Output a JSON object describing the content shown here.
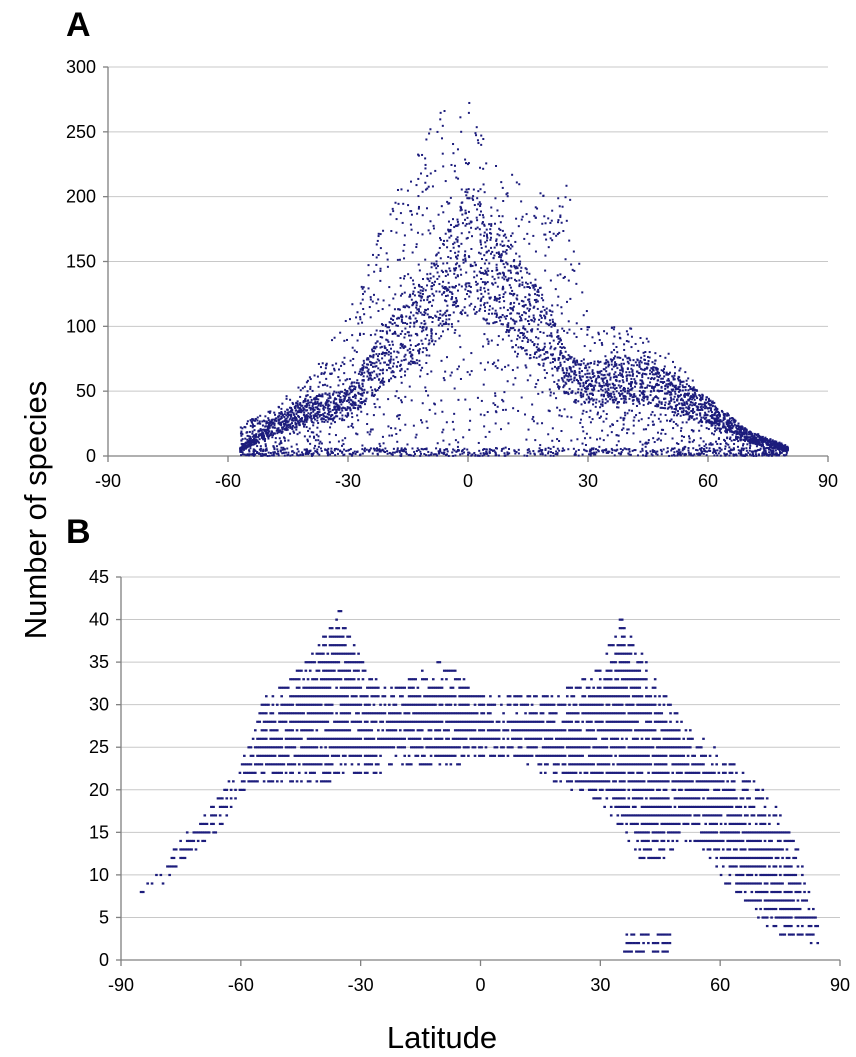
{
  "figure": {
    "ylabel": "Number of species",
    "xlabel": "Latitude"
  },
  "chart_data": [
    {
      "type": "scatter",
      "panel": "A",
      "xlim": [
        -90,
        90
      ],
      "ylim": [
        0,
        300
      ],
      "x_ticks": [
        "-90",
        "-60",
        "-30",
        "0",
        "30",
        "60",
        "90"
      ],
      "y_ticks": [
        "0",
        "50",
        "100",
        "150",
        "200",
        "250",
        "300"
      ],
      "grid": "horizontal",
      "marker_color": "#1c1c7c",
      "series_profile": {
        "latitudes": [
          -57,
          -50,
          -40,
          -30,
          -20,
          -10,
          0,
          10,
          20,
          25,
          30,
          40,
          50,
          60,
          70,
          80
        ],
        "typical_richness": [
          5,
          20,
          35,
          40,
          80,
          110,
          160,
          130,
          90,
          60,
          55,
          60,
          50,
          35,
          15,
          5
        ],
        "max_richness": [
          25,
          35,
          60,
          110,
          190,
          260,
          275,
          220,
          200,
          210,
          110,
          100,
          80,
          45,
          20,
          8
        ]
      }
    },
    {
      "type": "scatter",
      "panel": "B",
      "xlim": [
        -90,
        90
      ],
      "ylim": [
        0,
        45
      ],
      "x_ticks": [
        "-90",
        "-60",
        "-30",
        "0",
        "30",
        "60",
        "90"
      ],
      "y_ticks": [
        "0",
        "5",
        "10",
        "15",
        "20",
        "25",
        "30",
        "35",
        "40",
        "45"
      ],
      "grid": "horizontal",
      "marker_color": "#1c1c7c",
      "series_profile": {
        "latitudes": [
          -85,
          -80,
          -75,
          -70,
          -65,
          -60,
          -55,
          -50,
          -45,
          -40,
          -35,
          -30,
          -25,
          -20,
          -10,
          0,
          10,
          20,
          30,
          35,
          40,
          45,
          50,
          55,
          60,
          65,
          70,
          75,
          80,
          85
        ],
        "min_richness": [
          8,
          9,
          12,
          14,
          16,
          20,
          21,
          21,
          21,
          21,
          22,
          22,
          22,
          23,
          23,
          24,
          24,
          21,
          19,
          16,
          12,
          12,
          14,
          14,
          10,
          8,
          5,
          3,
          3,
          2
        ],
        "max_richness": [
          8,
          10,
          14,
          16,
          19,
          23,
          30,
          32,
          34,
          37,
          41,
          35,
          32,
          32,
          35,
          31,
          31,
          31,
          34,
          40,
          36,
          32,
          28,
          26,
          24,
          22,
          20,
          17,
          12,
          3
        ]
      }
    }
  ]
}
